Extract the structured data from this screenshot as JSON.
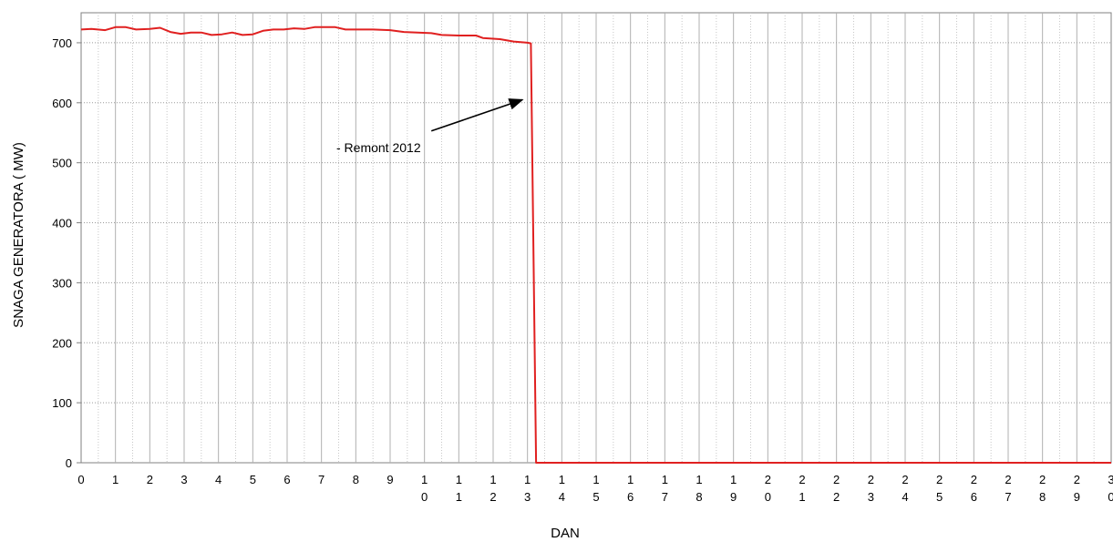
{
  "chart_data": {
    "type": "line",
    "title": "",
    "xlabel": "DAN",
    "ylabel": "SNAGA GENERATORA  ( MW)",
    "xlim": [
      0,
      30
    ],
    "ylim": [
      0,
      750
    ],
    "yticks": [
      0,
      100,
      200,
      300,
      400,
      500,
      600,
      700
    ],
    "xticks": [
      [
        "0"
      ],
      [
        "1"
      ],
      [
        "2"
      ],
      [
        "3"
      ],
      [
        "4"
      ],
      [
        "5"
      ],
      [
        "6"
      ],
      [
        "7"
      ],
      [
        "8"
      ],
      [
        "9"
      ],
      [
        "1",
        "0"
      ],
      [
        "1",
        "1"
      ],
      [
        "1",
        "2"
      ],
      [
        "1",
        "3"
      ],
      [
        "1",
        "4"
      ],
      [
        "1",
        "5"
      ],
      [
        "1",
        "6"
      ],
      [
        "1",
        "7"
      ],
      [
        "1",
        "8"
      ],
      [
        "1",
        "9"
      ],
      [
        "2",
        "0"
      ],
      [
        "2",
        "1"
      ],
      [
        "2",
        "2"
      ],
      [
        "2",
        "3"
      ],
      [
        "2",
        "4"
      ],
      [
        "2",
        "5"
      ],
      [
        "2",
        "6"
      ],
      [
        "2",
        "7"
      ],
      [
        "2",
        "8"
      ],
      [
        "2",
        "9"
      ],
      [
        "3",
        "0"
      ]
    ],
    "grid": true,
    "line_color": "#e02020",
    "series": [
      {
        "values": [
          [
            0,
            722
          ],
          [
            0.3,
            723
          ],
          [
            0.7,
            721
          ],
          [
            1.0,
            726
          ],
          [
            1.3,
            726
          ],
          [
            1.6,
            722
          ],
          [
            2.0,
            723
          ],
          [
            2.3,
            725
          ],
          [
            2.6,
            718
          ],
          [
            2.9,
            715
          ],
          [
            3.2,
            717
          ],
          [
            3.5,
            717
          ],
          [
            3.8,
            713
          ],
          [
            4.1,
            714
          ],
          [
            4.4,
            717
          ],
          [
            4.7,
            713
          ],
          [
            5.0,
            714
          ],
          [
            5.3,
            720
          ],
          [
            5.6,
            722
          ],
          [
            5.9,
            722
          ],
          [
            6.2,
            724
          ],
          [
            6.5,
            723
          ],
          [
            6.8,
            726
          ],
          [
            7.1,
            726
          ],
          [
            7.4,
            726
          ],
          [
            7.7,
            722
          ],
          [
            8.0,
            722
          ],
          [
            8.5,
            722
          ],
          [
            9.0,
            721
          ],
          [
            9.4,
            718
          ],
          [
            9.8,
            717
          ],
          [
            10.2,
            716
          ],
          [
            10.5,
            713
          ],
          [
            11.0,
            712
          ],
          [
            11.5,
            712
          ],
          [
            11.7,
            708
          ],
          [
            12.2,
            706
          ],
          [
            12.6,
            702
          ],
          [
            13.0,
            700
          ],
          [
            13.1,
            699
          ],
          [
            13.25,
            0
          ],
          [
            30,
            0
          ]
        ]
      }
    ],
    "annotation": {
      "text": "- Remont 2012",
      "arrow_from": [
        10.2,
        553
      ],
      "arrow_to": [
        12.85,
        605
      ]
    }
  }
}
